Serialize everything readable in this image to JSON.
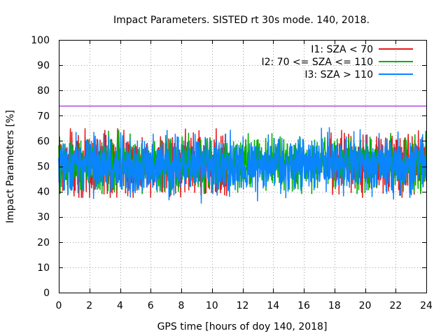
{
  "chart_data": {
    "type": "line",
    "title": "Impact Parameters. SISTED rt 30s mode. 140, 2018.",
    "xlabel": "GPS time [hours of doy 140, 2018]",
    "ylabel": "Impact Parameters [%]",
    "xlim": [
      0,
      24
    ],
    "ylim": [
      0,
      100
    ],
    "x_ticks": [
      0,
      2,
      4,
      6,
      8,
      10,
      12,
      14,
      16,
      18,
      20,
      22,
      24
    ],
    "y_ticks": [
      0,
      10,
      20,
      30,
      40,
      50,
      60,
      70,
      80,
      90,
      100
    ],
    "grid": true,
    "legend_position": "top-right",
    "threshold": {
      "value": 74,
      "color": "#9400d3"
    },
    "series": [
      {
        "name": "I1: SZA < 70",
        "color": "#e41a1c",
        "segments": [
          [
            0,
            11
          ],
          [
            17.6,
            24
          ]
        ],
        "mean": 51,
        "typical_min": 41,
        "typical_max": 60,
        "extreme_min": 37.5,
        "extreme_max": 65
      },
      {
        "name": "I2: 70 <= SZA <= 110",
        "color": "#00b000",
        "segments": [
          [
            0,
            24
          ]
        ],
        "mean": 51,
        "typical_min": 43,
        "typical_max": 59,
        "extreme_min": 39,
        "extreme_max": 66
      },
      {
        "name": "I3: SZA > 110",
        "color": "#0a84ff",
        "segments": [
          [
            0,
            24
          ]
        ],
        "mean": 50.5,
        "typical_min": 42,
        "typical_max": 59,
        "extreme_min": 34,
        "extreme_max": 65.5
      }
    ]
  }
}
